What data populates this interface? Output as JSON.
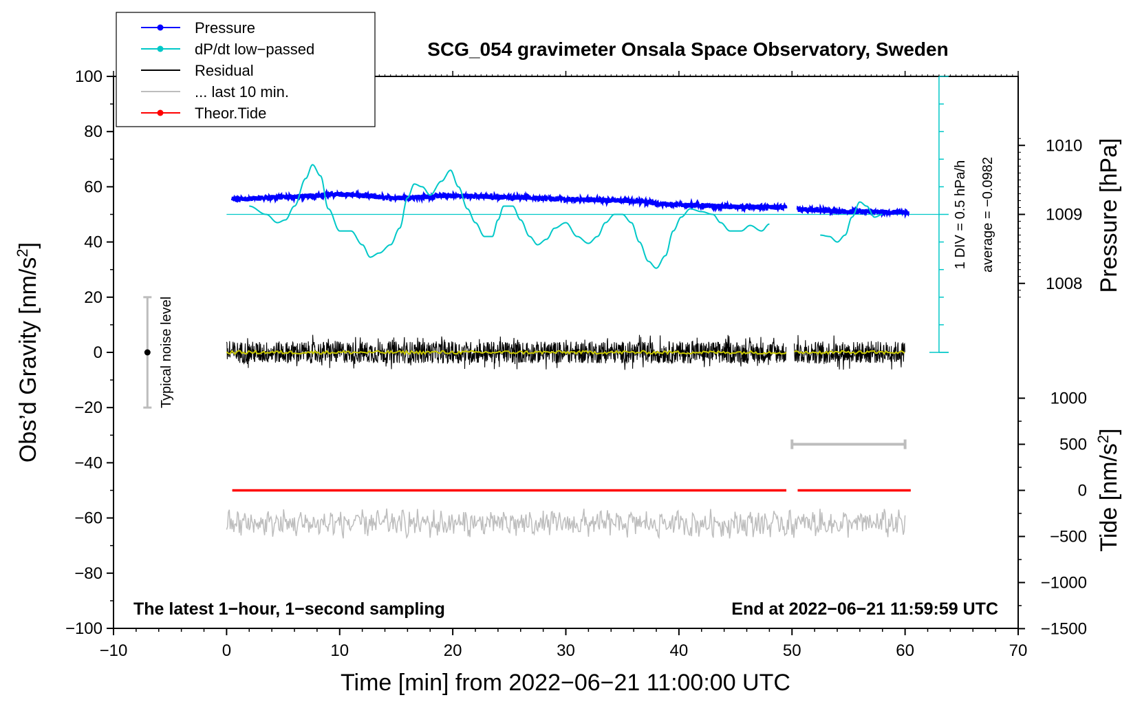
{
  "chart_data": {
    "type": "line",
    "title": "SCG_054 gravimeter Onsala Space Observatory, Sweden",
    "xlabel": "Time [min] from 2022−06−21 11:00:00 UTC",
    "ylabel_left": "Obs’d Gravity [nm/s²]",
    "ylabel_left_main": "Obs’d Gravity [nm/s",
    "ylabel_left_sup": "2",
    "ylabel_left_end": "]",
    "ylabel_right_pressure": "Pressure [hPa]",
    "ylabel_right_tide_main": "Tide [nm/s",
    "ylabel_right_tide_sup": "2",
    "ylabel_right_tide_end": "]",
    "xlim": [
      -10,
      70
    ],
    "ylim": [
      -100,
      100
    ],
    "x_ticks": [
      "−10",
      "0",
      "10",
      "20",
      "30",
      "40",
      "50",
      "60",
      "70"
    ],
    "y_ticks": [
      "−100",
      "−80",
      "−60",
      "−40",
      "−20",
      "0",
      "20",
      "40",
      "60",
      "80",
      "100"
    ],
    "pressure_ticks": [
      "1008",
      "1009",
      "1010"
    ],
    "tide_ticks": [
      "−1500",
      "−1000",
      "−500",
      "0",
      "500",
      "1000"
    ],
    "legend": [
      {
        "label": "Pressure",
        "color": "#0000ff",
        "marker": true
      },
      {
        "label": "dP/dt low−passed",
        "color": "#00c8c8",
        "marker": true
      },
      {
        "label": "Residual",
        "color": "#000000",
        "marker": false
      },
      {
        "label": "... last 10 min.",
        "color": "#bdbdbd",
        "marker": false
      },
      {
        "label": "Theor.Tide",
        "color": "#ff0000",
        "marker": true
      }
    ],
    "annotations": {
      "bottom_left": "The latest 1−hour, 1−second sampling",
      "bottom_right": "End at 2022−06−21 11:59:59 UTC",
      "noise_label": "Typical noise level",
      "dpdt_div": "1 DIV = 0.5 hPa/h",
      "dpdt_avg": "average = −0.0982"
    },
    "series": [
      {
        "name": "Pressure",
        "axis": "pressure_hPa",
        "color": "#0000ff",
        "segments": [
          {
            "x": [
              0.5,
              5,
              10,
              15,
              20,
              25,
              30,
              35,
              40,
              45,
              49.5
            ],
            "y": [
              1009.22,
              1009.25,
              1009.29,
              1009.24,
              1009.27,
              1009.25,
              1009.22,
              1009.2,
              1009.14,
              1009.11,
              1009.1
            ]
          },
          {
            "x": [
              50.5,
              55,
              60.3
            ],
            "y": [
              1009.07,
              1009.04,
              1009.03
            ]
          }
        ]
      },
      {
        "name": "dP/dt low-passed",
        "axis": "left",
        "color": "#00c8c8",
        "segments": [
          {
            "x": [
              2,
              3.5,
              4.5,
              5.2,
              6.0,
              7.0,
              7.6,
              8.3,
              9.0,
              10.0,
              11.0,
              12.0,
              12.7,
              13.5,
              14.5,
              15.3,
              16.0,
              16.6,
              17.3,
              18.0,
              19.0,
              19.8,
              20.5,
              21.3,
              22.0,
              22.8,
              23.5,
              24.0,
              24.5,
              25.3,
              26.0,
              26.8,
              27.5,
              28.3,
              29.0,
              30.0,
              31.0,
              32.0,
              32.8,
              33.5,
              34.3,
              35.0,
              35.8,
              36.5,
              37.3,
              38.0,
              38.8,
              39.5,
              40.2,
              41.0,
              42.0,
              43.0,
              43.7,
              44.5,
              45.5,
              46.3,
              47.3,
              48.0
            ],
            "y": [
              53,
              50,
              47,
              48,
              53,
              63,
              68,
              64,
              52,
              44,
              44,
              39,
              34.5,
              36,
              39,
              45,
              56,
              61,
              60,
              57,
              62,
              66,
              60,
              52,
              47,
              42,
              42,
              48,
              53,
              53,
              48,
              42,
              39,
              41,
              45,
              47,
              42,
              39.5,
              42,
              47,
              50,
              50,
              47,
              40,
              33,
              30.5,
              35,
              44,
              49,
              52,
              51,
              50,
              47,
              44,
              44,
              46,
              44,
              46.5
            ]
          },
          {
            "x": [
              52.5,
              53.3,
              54.0,
              54.7,
              55.3,
              56.0,
              56.6,
              57.3,
              58.0
            ],
            "y": [
              42.5,
              42,
              40,
              42.5,
              49,
              54.5,
              53,
              49,
              50
            ]
          }
        ]
      },
      {
        "name": "Residual",
        "axis": "left",
        "color": "#000000",
        "segments": [
          {
            "x": [
              0,
              49.5
            ],
            "y": [
              0,
              0
            ]
          },
          {
            "x": [
              50.2,
              60
            ],
            "y": [
              0,
              0
            ]
          }
        ],
        "amplitude_approx": 4
      },
      {
        "name": "... last 10 min.",
        "axis": "left",
        "color": "#bdbdbd",
        "segments": [
          {
            "x": [
              0,
              60
            ],
            "y": [
              -62,
              -62
            ]
          }
        ],
        "amplitude_approx": 4
      },
      {
        "name": "Theor.Tide",
        "axis": "tide_nm_s2",
        "color": "#ff0000",
        "segments": [
          {
            "x": [
              0.5,
              49.5
            ],
            "y": [
              0,
              0
            ]
          },
          {
            "x": [
              50.5,
              60.5
            ],
            "y": [
              0,
              0
            ]
          }
        ]
      }
    ],
    "noise_bar": {
      "x": -7,
      "y_center": 0,
      "y_low": -20,
      "y_high": 20
    },
    "dpdt_zero_line": 50,
    "dpdt_scale": {
      "x": 63,
      "y_bottom": 0,
      "y_top": 100
    },
    "last10_bar": {
      "x_start": 50,
      "x_end": 60,
      "tide_y": 500
    }
  },
  "colors": {
    "pressure": "#0000ff",
    "dpdt": "#00c8c8",
    "residual": "#000000",
    "residual_smooth": "#c8c800",
    "last10": "#bdbdbd",
    "tide": "#ff0000"
  }
}
